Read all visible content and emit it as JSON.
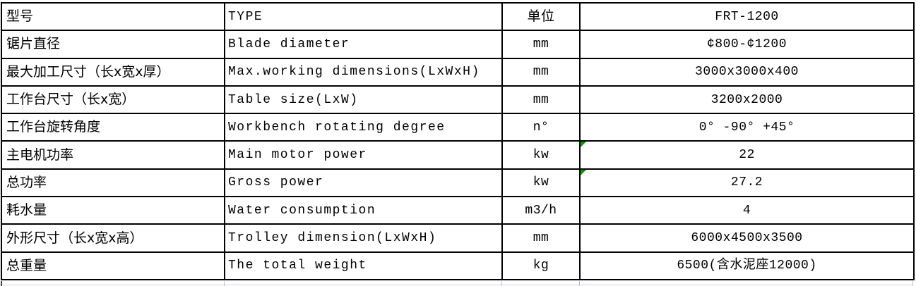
{
  "table": {
    "rows": [
      {
        "cn": "型号",
        "en": "TYPE",
        "unit": "单位",
        "value": "FRT-1200",
        "flag": false
      },
      {
        "cn": "锯片直径",
        "en": "Blade diameter",
        "unit": "mm",
        "value": "¢800-¢1200",
        "flag": false
      },
      {
        "cn": "最大加工尺寸（长x宽x厚）",
        "en": "Max.working dimensions(LxWxH)",
        "unit": "mm",
        "value": "3000x3000x400",
        "flag": false
      },
      {
        "cn": "工作台尺寸（长x宽）",
        "en": "Table size(LxW)",
        "unit": "mm",
        "value": "3200x2000",
        "flag": false
      },
      {
        "cn": "工作台旋转角度",
        "en": "Workbench rotating degree",
        "unit": "n°",
        "value": "0° -90° +45°",
        "flag": false
      },
      {
        "cn": "主电机功率",
        "en": "Main motor power",
        "unit": "kw",
        "value": "22",
        "flag": true
      },
      {
        "cn": "总功率",
        "en": "Gross power",
        "unit": "kw",
        "value": "27.2",
        "flag": true
      },
      {
        "cn": "耗水量",
        "en": "Water consumption",
        "unit": "m3/h",
        "value": "4",
        "flag": false
      },
      {
        "cn": "外形尺寸（长x宽x高）",
        "en": "Trolley dimension(LxWxH)",
        "unit": "mm",
        "value": "6000x4500x3500",
        "flag": false
      },
      {
        "cn": "总重量",
        "en": "The total weight",
        "unit": "kg",
        "value": "6500(含水泥座12000)",
        "flag": false
      }
    ],
    "colors": {
      "border": "#000000",
      "text": "#000000",
      "background": "#ffffff",
      "error_flag_green": "#009b00",
      "gridline": "#ccd6e4"
    }
  }
}
